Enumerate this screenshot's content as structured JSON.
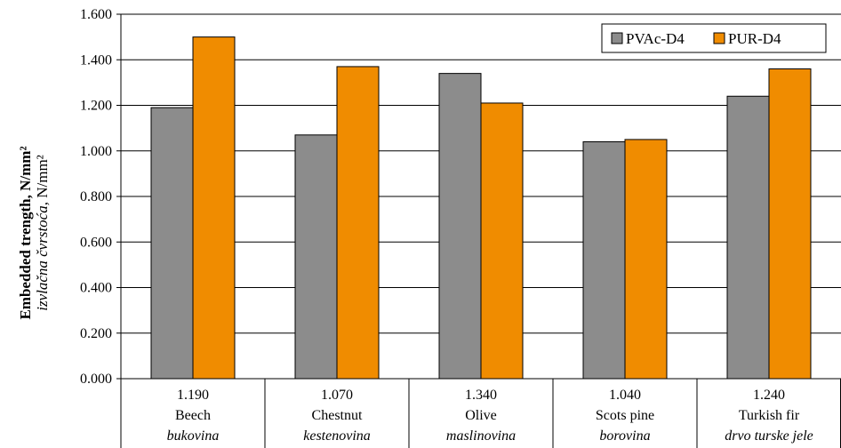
{
  "chart_data": {
    "type": "bar",
    "y_axis_title": {
      "bold": "Embedded trength, N/mm²",
      "italic_part": "izvlačna čvrstoća,",
      "unit_part": " N/mm²"
    },
    "ylim": [
      0,
      1.6
    ],
    "yticks": [
      {
        "value": 0.0,
        "label": "0.000"
      },
      {
        "value": 0.2,
        "label": "0.200"
      },
      {
        "value": 0.4,
        "label": "0.400"
      },
      {
        "value": 0.6,
        "label": "0.600"
      },
      {
        "value": 0.8,
        "label": "0.800"
      },
      {
        "value": 1.0,
        "label": "1.000"
      },
      {
        "value": 1.2,
        "label": "1.200"
      },
      {
        "value": 1.4,
        "label": "1.400"
      },
      {
        "value": 1.6,
        "label": "1.600"
      }
    ],
    "grid": true,
    "legend_position": "top-right",
    "categories": [
      {
        "value_text": "1.190",
        "name": "Beech",
        "local_name": "bukovina"
      },
      {
        "value_text": "1.070",
        "name": "Chestnut",
        "local_name": "kestenovina"
      },
      {
        "value_text": "1.340",
        "name": "Olive",
        "local_name": "maslinovina"
      },
      {
        "value_text": "1.040",
        "name": "Scots pine",
        "local_name": "borovina"
      },
      {
        "value_text": "1.240",
        "name": "Turkish fir",
        "local_name": "drvo turske jele"
      }
    ],
    "series": [
      {
        "name": "PVAc-D4",
        "color": "#8c8c8c",
        "values": [
          1.19,
          1.07,
          1.34,
          1.04,
          1.24
        ]
      },
      {
        "name": "PUR-D4",
        "color": "#f08c00",
        "values": [
          1.5,
          1.37,
          1.21,
          1.05,
          1.36
        ]
      }
    ]
  }
}
